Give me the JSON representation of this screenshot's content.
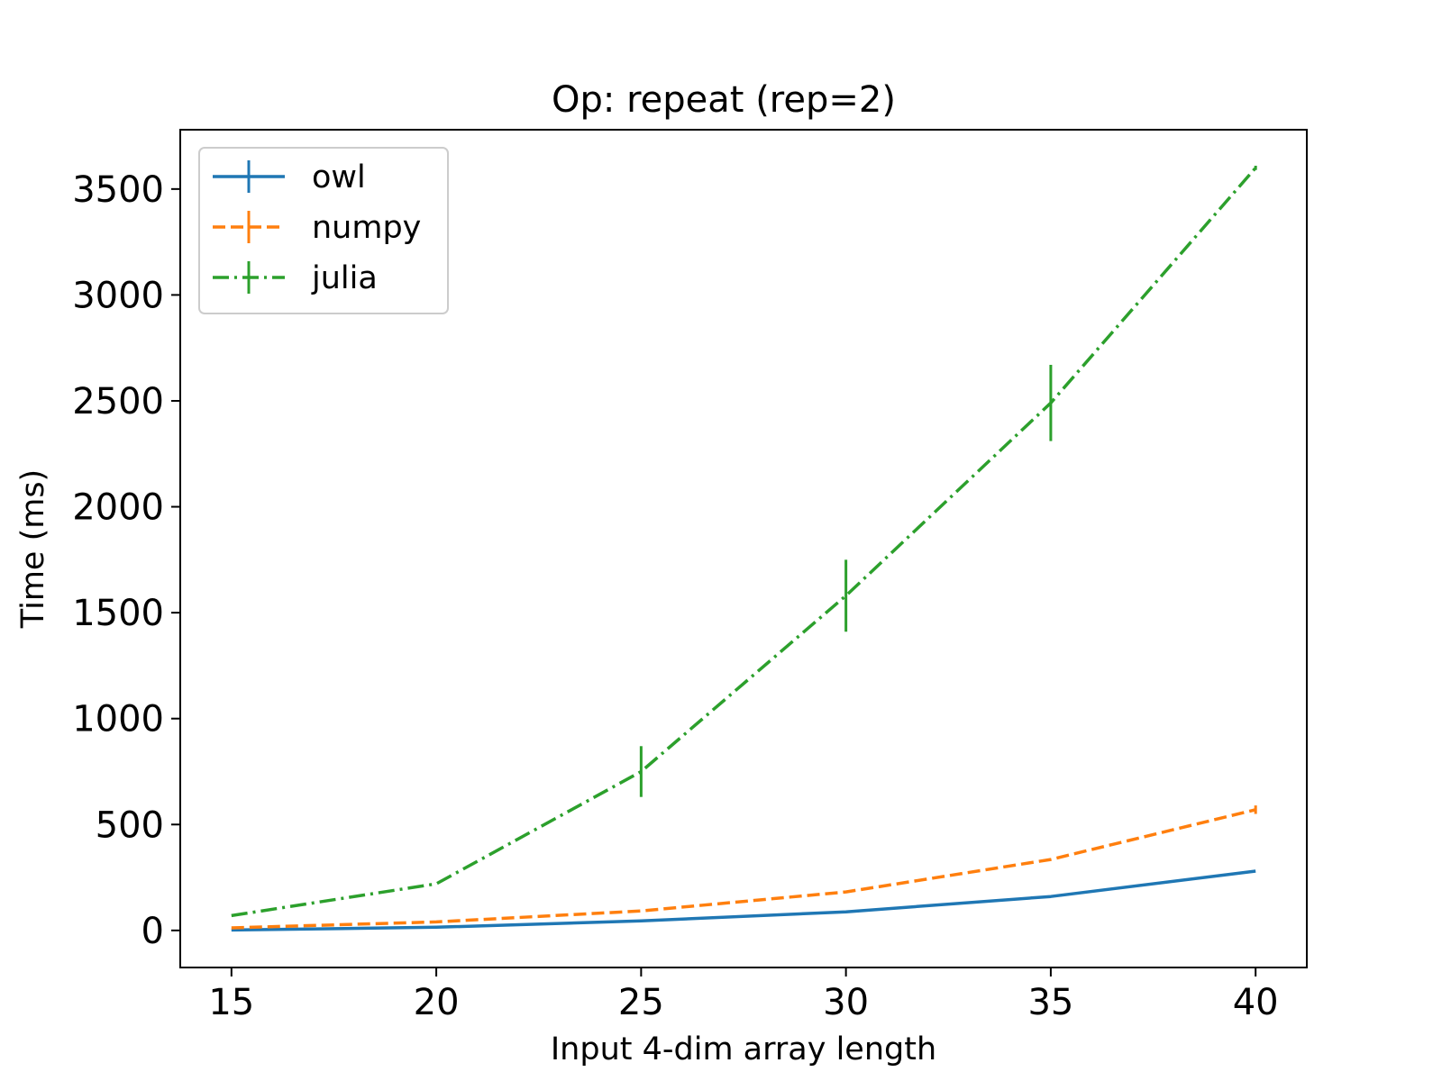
{
  "chart_data": {
    "type": "line",
    "title": "Op: repeat (rep=2)",
    "xlabel": "Input 4-dim array length",
    "ylabel": "Time (ms)",
    "xlim": [
      13.75,
      41.25
    ],
    "ylim": [
      -175,
      3780
    ],
    "xticks": [
      15,
      20,
      25,
      30,
      35,
      40
    ],
    "yticks": [
      0,
      500,
      1000,
      1500,
      2000,
      2500,
      3000,
      3500
    ],
    "grid": false,
    "legend_position": "top-left",
    "series": [
      {
        "name": "owl",
        "color": "#1f77b4",
        "linestyle": "solid",
        "x": [
          15,
          20,
          25,
          30,
          35,
          40
        ],
        "y": [
          2,
          15,
          45,
          88,
          160,
          280
        ],
        "err": [
          0,
          0,
          0,
          0,
          0,
          0
        ]
      },
      {
        "name": "numpy",
        "color": "#ff7f0e",
        "linestyle": "dashed",
        "x": [
          15,
          20,
          25,
          30,
          35,
          40
        ],
        "y": [
          12,
          40,
          92,
          182,
          335,
          570
        ],
        "err": [
          0,
          0,
          0,
          0,
          0,
          20
        ]
      },
      {
        "name": "julia",
        "color": "#2ca02c",
        "linestyle": "dashdot",
        "x": [
          15,
          20,
          25,
          30,
          35,
          40
        ],
        "y": [
          70,
          220,
          750,
          1580,
          2490,
          3600
        ],
        "err": [
          0,
          0,
          120,
          170,
          180,
          10
        ]
      }
    ]
  }
}
